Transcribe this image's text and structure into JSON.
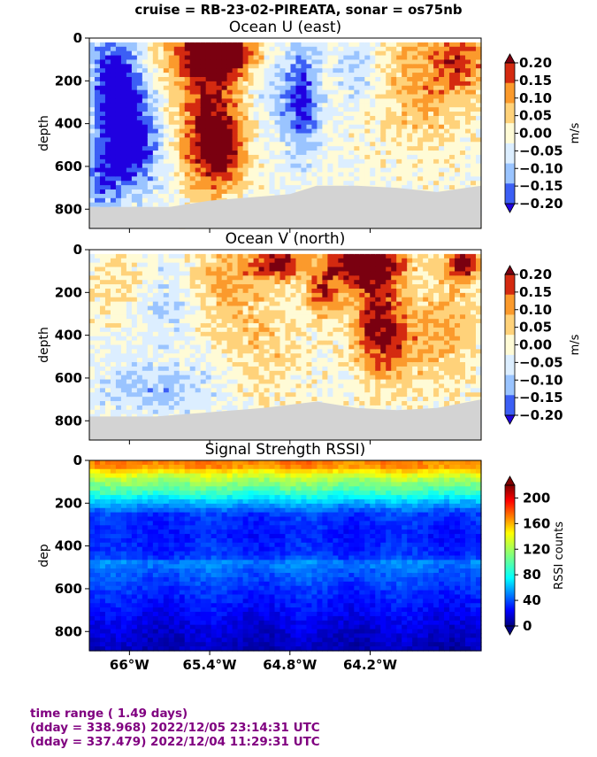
{
  "suptitle": "cruise = RB-23-02-PIREATA,  sonar = os75nb",
  "colors": {
    "footer_text": "#800080",
    "bottom_fill": "#d3d3d3"
  },
  "chart_data": [
    {
      "type": "heatmap",
      "title": "Ocean U (east)",
      "ylabel": "depth",
      "yticks": [
        "0",
        "200",
        "400",
        "600",
        "800"
      ],
      "ylim": [
        890,
        0
      ],
      "xlim": [
        -66.3,
        -63.37
      ],
      "xticks": [
        -66.0,
        -65.4,
        -64.8,
        -64.2
      ],
      "colorbar": {
        "label": "m/s",
        "ticks": [
          "0.20",
          "0.15",
          "0.10",
          "0.05",
          "0.00",
          "−0.05",
          "−0.10",
          "−0.15",
          "−0.20"
        ],
        "colormap": "diverging-bwr",
        "range": [
          -0.2,
          0.2
        ]
      },
      "bottom_depth": [
        {
          "lon": -66.3,
          "depth": 790
        },
        {
          "lon": -65.7,
          "depth": 790
        },
        {
          "lon": -65.4,
          "depth": 760
        },
        {
          "lon": -65.0,
          "depth": 740
        },
        {
          "lon": -64.8,
          "depth": 730
        },
        {
          "lon": -64.6,
          "depth": 690
        },
        {
          "lon": -64.3,
          "depth": 690
        },
        {
          "lon": -64.0,
          "depth": 700
        },
        {
          "lon": -63.7,
          "depth": 720
        },
        {
          "lon": -63.37,
          "depth": 690
        }
      ],
      "features": [
        {
          "lon": -66.1,
          "depth": 250,
          "value": -0.22,
          "lonw": 0.18,
          "dw": 300
        },
        {
          "lon": -65.95,
          "depth": 500,
          "value": -0.16,
          "lonw": 0.2,
          "dw": 220
        },
        {
          "lon": -66.2,
          "depth": 650,
          "value": -0.12,
          "lonw": 0.15,
          "dw": 150
        },
        {
          "lon": -65.35,
          "depth": 60,
          "value": 0.24,
          "lonw": 0.35,
          "dw": 120
        },
        {
          "lon": -65.4,
          "depth": 300,
          "value": 0.17,
          "lonw": 0.25,
          "dw": 250
        },
        {
          "lon": -65.35,
          "depth": 550,
          "value": 0.19,
          "lonw": 0.22,
          "dw": 180
        },
        {
          "lon": -64.7,
          "depth": 300,
          "value": -0.15,
          "lonw": 0.12,
          "dw": 250
        },
        {
          "lon": -64.9,
          "depth": 200,
          "value": -0.07,
          "lonw": 0.2,
          "dw": 300
        },
        {
          "lon": -64.3,
          "depth": 150,
          "value": -0.08,
          "lonw": 0.15,
          "dw": 150
        },
        {
          "lon": -63.8,
          "depth": 200,
          "value": 0.1,
          "lonw": 0.35,
          "dw": 300
        },
        {
          "lon": -63.5,
          "depth": 100,
          "value": 0.12,
          "lonw": 0.2,
          "dw": 150
        }
      ]
    },
    {
      "type": "heatmap",
      "title": "Ocean V (north)",
      "ylabel": "depth",
      "yticks": [
        "0",
        "200",
        "400",
        "600",
        "800"
      ],
      "ylim": [
        890,
        0
      ],
      "xlim": [
        -66.3,
        -63.37
      ],
      "xticks": [
        -66.0,
        -65.4,
        -64.8,
        -64.2
      ],
      "colorbar": {
        "label": "m/s",
        "ticks": [
          "0.20",
          "0.15",
          "0.10",
          "0.05",
          "0.00",
          "−0.05",
          "−0.10",
          "−0.15",
          "−0.20"
        ],
        "colormap": "diverging-bwr",
        "range": [
          -0.2,
          0.2
        ]
      },
      "bottom_depth": [
        {
          "lon": -66.3,
          "depth": 780
        },
        {
          "lon": -65.8,
          "depth": 780
        },
        {
          "lon": -65.4,
          "depth": 760
        },
        {
          "lon": -65.0,
          "depth": 740
        },
        {
          "lon": -64.6,
          "depth": 710
        },
        {
          "lon": -64.3,
          "depth": 740
        },
        {
          "lon": -64.0,
          "depth": 750
        },
        {
          "lon": -63.7,
          "depth": 740
        },
        {
          "lon": -63.37,
          "depth": 700
        }
      ],
      "features": [
        {
          "lon": -64.25,
          "depth": 60,
          "value": 0.24,
          "lonw": 0.3,
          "dw": 100
        },
        {
          "lon": -64.15,
          "depth": 300,
          "value": 0.17,
          "lonw": 0.2,
          "dw": 250
        },
        {
          "lon": -64.0,
          "depth": 450,
          "value": 0.1,
          "lonw": 0.25,
          "dw": 200
        },
        {
          "lon": -64.55,
          "depth": 200,
          "value": 0.15,
          "lonw": 0.12,
          "dw": 120
        },
        {
          "lon": -64.9,
          "depth": 60,
          "value": 0.2,
          "lonw": 0.2,
          "dw": 80
        },
        {
          "lon": -65.3,
          "depth": 150,
          "value": 0.09,
          "lonw": 0.25,
          "dw": 200
        },
        {
          "lon": -65.0,
          "depth": 450,
          "value": 0.06,
          "lonw": 0.3,
          "dw": 300
        },
        {
          "lon": -65.7,
          "depth": 250,
          "value": -0.06,
          "lonw": 0.2,
          "dw": 200
        },
        {
          "lon": -66.1,
          "depth": 150,
          "value": 0.06,
          "lonw": 0.2,
          "dw": 150
        },
        {
          "lon": -65.8,
          "depth": 650,
          "value": -0.08,
          "lonw": 0.5,
          "dw": 120
        },
        {
          "lon": -63.5,
          "depth": 60,
          "value": 0.22,
          "lonw": 0.12,
          "dw": 80
        },
        {
          "lon": -63.6,
          "depth": 350,
          "value": 0.09,
          "lonw": 0.2,
          "dw": 250
        }
      ]
    },
    {
      "type": "heatmap",
      "title": "Signal Strength RSSI)",
      "ylabel": "dep",
      "yticks": [
        "0",
        "200",
        "400",
        "600",
        "800"
      ],
      "ylim": [
        890,
        0
      ],
      "xlim": [
        -66.3,
        -63.37
      ],
      "xticks": [
        -66.0,
        -65.4,
        -64.8,
        -64.2
      ],
      "colorbar": {
        "label": "RSSI counts",
        "ticks": [
          "200",
          "160",
          "120",
          "80",
          "40",
          "0"
        ],
        "colormap": "jet",
        "range": [
          0,
          220
        ]
      },
      "depth_profile": [
        {
          "depth": 25,
          "value": 165
        },
        {
          "depth": 60,
          "value": 135
        },
        {
          "depth": 100,
          "value": 115
        },
        {
          "depth": 150,
          "value": 95
        },
        {
          "depth": 200,
          "value": 65
        },
        {
          "depth": 250,
          "value": 40
        },
        {
          "depth": 350,
          "value": 32
        },
        {
          "depth": 450,
          "value": 38
        },
        {
          "depth": 480,
          "value": 58
        },
        {
          "depth": 520,
          "value": 48
        },
        {
          "depth": 600,
          "value": 38
        },
        {
          "depth": 700,
          "value": 28
        },
        {
          "depth": 800,
          "value": 18
        },
        {
          "depth": 880,
          "value": 12
        }
      ]
    }
  ],
  "x_tick_labels": [
    "66°W",
    "65.4°W",
    "64.8°W",
    "64.2°W"
  ],
  "footer": {
    "line1": "time range ( 1.49 days)",
    "line2": "(dday = 338.968) 2022/12/05 23:14:31 UTC",
    "line3": "(dday = 337.479) 2022/12/04 11:29:31 UTC"
  }
}
